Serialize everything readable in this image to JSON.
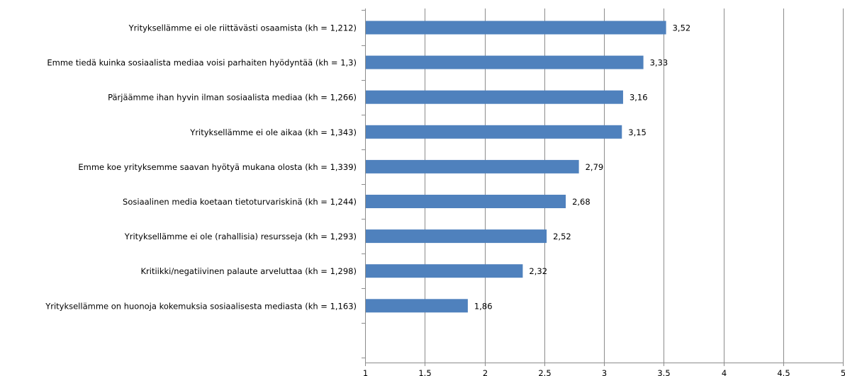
{
  "chart_data": {
    "type": "bar",
    "orientation": "horizontal",
    "categories": [
      "Yrityksellämme ei ole riittävästi osaamista (kh = 1,212)",
      "Emme tiedä kuinka sosiaalista mediaa voisi parhaiten hyödyntää (kh = 1,3)",
      "Pärjäämme ihan hyvin ilman sosiaalista mediaa (kh = 1,266)",
      "Yrityksellämme ei ole aikaa (kh = 1,343)",
      "Emme koe yrityksemme saavan hyötyä mukana olosta (kh = 1,339)",
      "Sosiaalinen media koetaan tietoturvariskinä (kh = 1,244)",
      "Yrityksellämme ei ole (rahallisia) resursseja (kh = 1,293)",
      "Kritiikki/negatiivinen palaute arveluttaa (kh = 1,298)",
      "Yrityksellämme on huonoja kokemuksia sosiaalisesta mediasta (kh = 1,163)"
    ],
    "values": [
      3.52,
      3.33,
      3.16,
      3.15,
      2.79,
      2.68,
      2.52,
      2.32,
      1.86
    ],
    "value_labels": [
      "3,52",
      "3,33",
      "3,16",
      "3,15",
      "2,79",
      "2,68",
      "2,52",
      "2,32",
      "1,86"
    ],
    "xlim": [
      1,
      5
    ],
    "xticks": [
      1,
      1.5,
      2,
      2.5,
      3,
      3.5,
      4,
      4.5,
      5
    ],
    "xtick_labels": [
      "1",
      "1.5",
      "2",
      "2.5",
      "3",
      "3.5",
      "4",
      "4.5",
      "5"
    ],
    "grid": "vertical",
    "legend": "none",
    "title": "",
    "xlabel": "",
    "ylabel": "",
    "colors": {
      "bar": "#4f81bd",
      "grid": "#8c8c8c",
      "axis": "#8c8c8c",
      "text": "#000000"
    }
  }
}
